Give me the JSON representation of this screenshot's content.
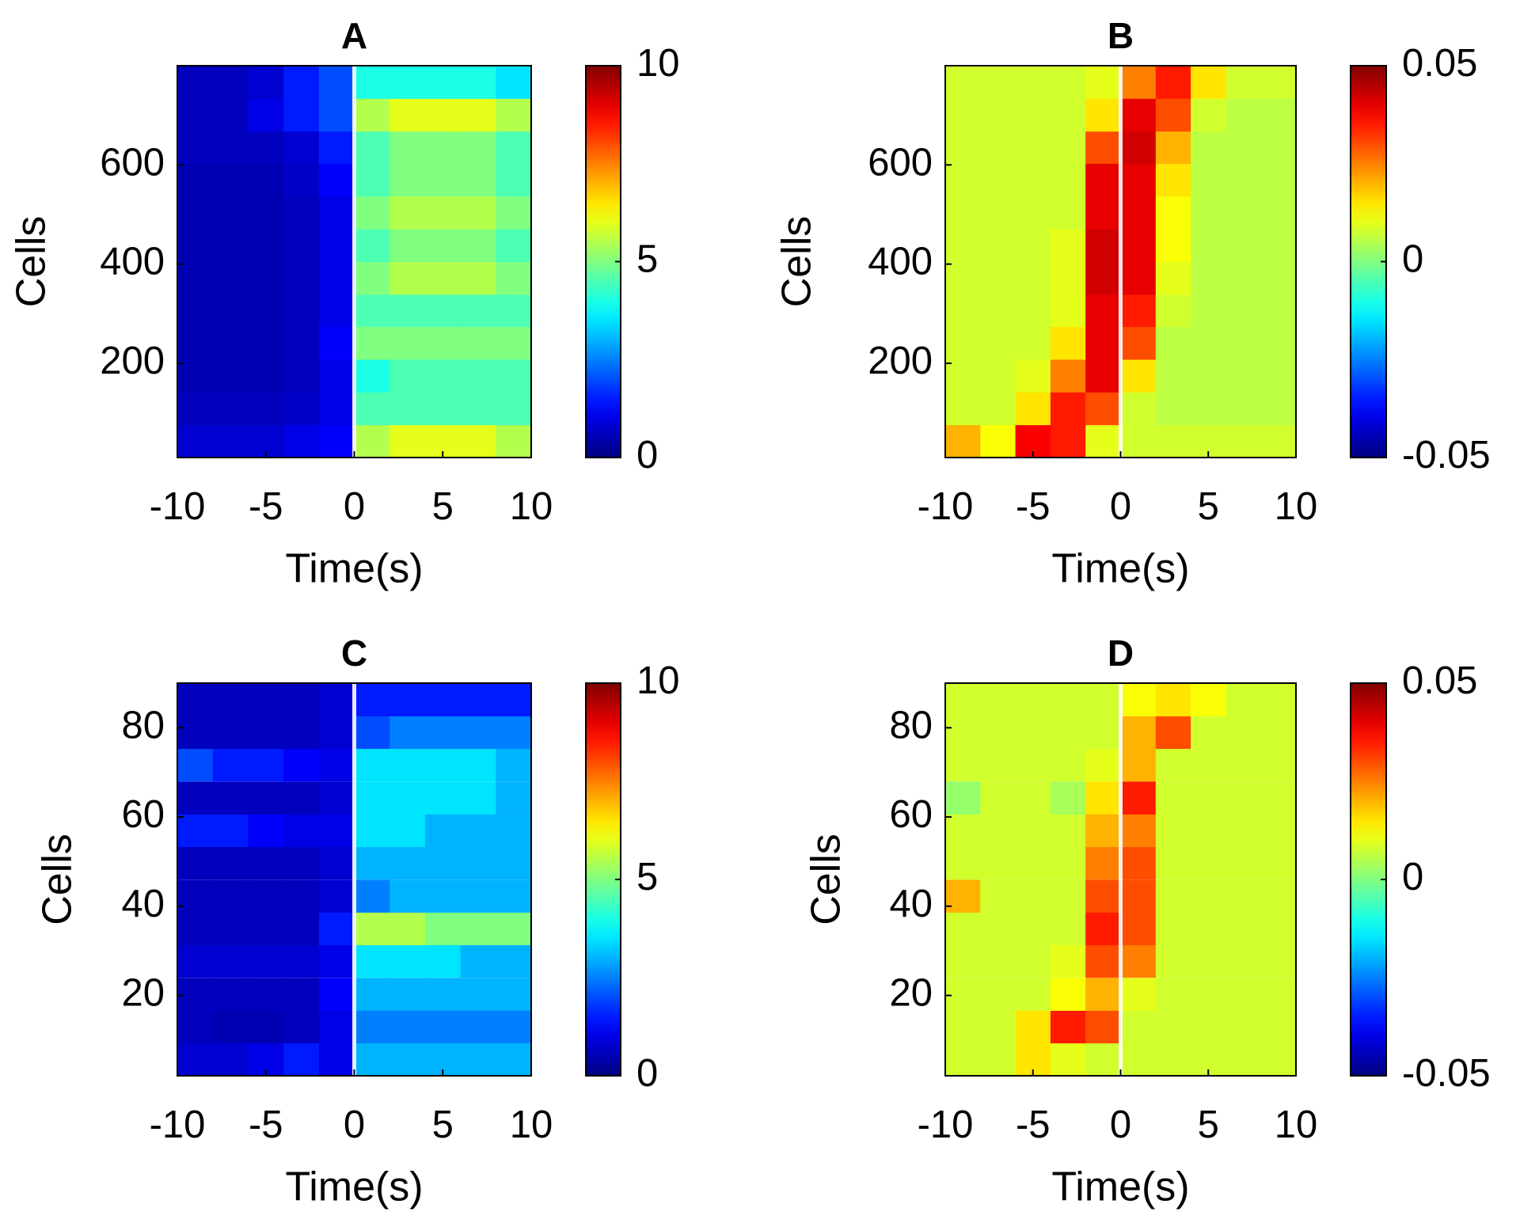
{
  "chart_data": [
    {
      "type": "heatmap",
      "title": "A",
      "xlabel": "Time(s)",
      "ylabel": "Cells",
      "colormap": "jet",
      "vline": 0,
      "xlim": [
        -10,
        10
      ],
      "xticks": [
        -10,
        -5,
        0,
        5,
        10
      ],
      "ylim": [
        10,
        800
      ],
      "yticks": [
        200,
        400,
        600
      ],
      "clim": [
        0,
        10
      ],
      "cticks": [
        0,
        5,
        10
      ],
      "x": [
        -9,
        -7,
        -5,
        -3,
        -1,
        1,
        3,
        5,
        7,
        9
      ],
      "y": [
        43,
        109,
        175,
        241,
        307,
        372,
        438,
        504,
        570,
        636,
        701,
        767
      ],
      "values": [
        [
          0.8,
          0.8,
          0.8,
          1.0,
          1.2,
          5.5,
          6,
          6,
          6,
          5.5
        ],
        [
          0.6,
          0.6,
          0.6,
          0.7,
          1.0,
          4.5,
          4.5,
          4.5,
          4.5,
          4.5
        ],
        [
          0.5,
          0.5,
          0.5,
          0.6,
          1.0,
          4,
          4.5,
          4.5,
          4.5,
          4.5
        ],
        [
          0.5,
          0.5,
          0.5,
          0.6,
          1.2,
          5,
          5,
          5,
          5,
          5
        ],
        [
          0.5,
          0.5,
          0.5,
          0.6,
          1.0,
          4.5,
          4.5,
          4.5,
          4.5,
          4.5
        ],
        [
          0.5,
          0.5,
          0.5,
          0.6,
          1.0,
          5,
          5.5,
          5.5,
          5.5,
          5
        ],
        [
          0.5,
          0.5,
          0.5,
          0.6,
          1.0,
          4.5,
          5,
          5,
          5,
          4.5
        ],
        [
          0.5,
          0.5,
          0.5,
          0.6,
          1.0,
          5,
          5.5,
          5.5,
          5.5,
          5
        ],
        [
          0.5,
          0.5,
          0.5,
          0.7,
          1.2,
          4.5,
          5,
          5,
          5,
          4.5
        ],
        [
          0.6,
          0.6,
          0.6,
          0.8,
          1.5,
          4.5,
          5,
          5,
          5,
          4.5
        ],
        [
          0.6,
          0.6,
          1.0,
          1.5,
          2,
          5.5,
          6,
          6,
          6,
          5.5
        ],
        [
          0.6,
          0.6,
          0.8,
          1.5,
          2,
          4,
          4,
          4,
          4,
          3.5
        ]
      ]
    },
    {
      "type": "heatmap",
      "title": "B",
      "xlabel": "Time(s)",
      "ylabel": "Cells",
      "colormap": "jet",
      "vline": 0,
      "xlim": [
        -10,
        10
      ],
      "xticks": [
        -10,
        -5,
        0,
        5,
        10
      ],
      "ylim": [
        10,
        800
      ],
      "yticks": [
        200,
        400,
        600
      ],
      "clim": [
        -0.05,
        0.05
      ],
      "cticks": [
        -0.05,
        0,
        0.05
      ],
      "x": [
        -9,
        -7,
        -5,
        -3,
        -1,
        1,
        3,
        5,
        7,
        9
      ],
      "y": [
        43,
        109,
        175,
        241,
        307,
        372,
        438,
        504,
        570,
        636,
        701,
        767
      ],
      "values": [
        [
          0.02,
          0.012,
          0.038,
          0.035,
          0.01,
          0.008,
          0.008,
          0.008,
          0.008,
          0.008
        ],
        [
          0.008,
          0.008,
          0.015,
          0.035,
          0.03,
          0.008,
          0.006,
          0.006,
          0.006,
          0.006
        ],
        [
          0.008,
          0.008,
          0.01,
          0.025,
          0.04,
          0.015,
          0.006,
          0.006,
          0.006,
          0.006
        ],
        [
          0.008,
          0.008,
          0.008,
          0.015,
          0.04,
          0.03,
          0.006,
          0.006,
          0.006,
          0.006
        ],
        [
          0.008,
          0.008,
          0.008,
          0.01,
          0.04,
          0.035,
          0.008,
          0.006,
          0.006,
          0.006
        ],
        [
          0.008,
          0.008,
          0.008,
          0.01,
          0.042,
          0.04,
          0.01,
          0.006,
          0.006,
          0.006
        ],
        [
          0.008,
          0.008,
          0.008,
          0.01,
          0.042,
          0.04,
          0.012,
          0.006,
          0.006,
          0.006
        ],
        [
          0.008,
          0.008,
          0.008,
          0.008,
          0.04,
          0.04,
          0.012,
          0.006,
          0.006,
          0.006
        ],
        [
          0.008,
          0.008,
          0.008,
          0.008,
          0.04,
          0.04,
          0.015,
          0.006,
          0.006,
          0.006
        ],
        [
          0.008,
          0.008,
          0.008,
          0.008,
          0.03,
          0.042,
          0.02,
          0.006,
          0.006,
          0.006
        ],
        [
          0.008,
          0.008,
          0.008,
          0.008,
          0.015,
          0.04,
          0.03,
          0.008,
          0.006,
          0.006
        ],
        [
          0.008,
          0.008,
          0.008,
          0.008,
          0.01,
          0.025,
          0.035,
          0.015,
          0.008,
          0.008
        ]
      ]
    },
    {
      "type": "heatmap",
      "title": "C",
      "xlabel": "Time(s)",
      "ylabel": "Cells",
      "colormap": "jet",
      "vline": 0,
      "xlim": [
        -10,
        10
      ],
      "xticks": [
        -10,
        -5,
        0,
        5,
        10
      ],
      "ylim": [
        2,
        90
      ],
      "yticks": [
        20,
        40,
        60,
        80
      ],
      "clim": [
        0,
        10
      ],
      "cticks": [
        0,
        5,
        10
      ],
      "x": [
        -9,
        -7,
        -5,
        -3,
        -1,
        1,
        3,
        5,
        7,
        9
      ],
      "y": [
        5.7,
        13,
        20.3,
        27.7,
        35,
        42.3,
        49.7,
        57,
        64.3,
        71.7,
        79,
        86.3
      ],
      "values": [
        [
          0.8,
          0.8,
          1,
          1.5,
          1,
          3,
          3,
          3,
          3,
          3
        ],
        [
          0.6,
          0.5,
          0.5,
          0.6,
          1,
          2.5,
          2.5,
          2.5,
          2.5,
          2.5
        ],
        [
          0.6,
          0.6,
          0.6,
          0.6,
          1.2,
          3,
          3,
          3,
          3,
          3
        ],
        [
          0.8,
          0.8,
          0.8,
          0.8,
          1,
          3.5,
          3.5,
          3.5,
          3,
          3
        ],
        [
          0.6,
          0.6,
          0.6,
          0.6,
          1.5,
          5.5,
          5.5,
          5,
          5,
          5
        ],
        [
          0.6,
          0.6,
          0.6,
          0.6,
          0.8,
          2.5,
          3,
          3,
          3,
          3
        ],
        [
          0.6,
          0.6,
          0.6,
          0.6,
          0.8,
          3,
          3,
          3,
          3,
          3
        ],
        [
          1.5,
          1.5,
          1.2,
          1,
          1,
          3.5,
          3.5,
          3,
          3,
          3
        ],
        [
          0.6,
          0.6,
          0.6,
          0.6,
          0.8,
          3.5,
          3.5,
          3.5,
          3.5,
          3
        ],
        [
          2,
          1.5,
          1.5,
          1.2,
          1,
          3.5,
          3.5,
          3.5,
          3.5,
          3
        ],
        [
          0.6,
          0.6,
          0.6,
          0.6,
          0.8,
          2,
          2.5,
          2.5,
          2.5,
          2.5
        ],
        [
          0.6,
          0.6,
          0.6,
          0.6,
          0.8,
          1.5,
          1.5,
          1.5,
          1.5,
          1.5
        ]
      ]
    },
    {
      "type": "heatmap",
      "title": "D",
      "xlabel": "Time(s)",
      "ylabel": "Cells",
      "colormap": "jet",
      "vline": 0,
      "xlim": [
        -10,
        10
      ],
      "xticks": [
        -10,
        -5,
        0,
        5,
        10
      ],
      "ylim": [
        2,
        90
      ],
      "yticks": [
        20,
        40,
        60,
        80
      ],
      "clim": [
        -0.05,
        0.05
      ],
      "cticks": [
        -0.05,
        0,
        0.05
      ],
      "x": [
        -9,
        -7,
        -5,
        -3,
        -1,
        1,
        3,
        5,
        7,
        9
      ],
      "y": [
        5.7,
        13,
        20.3,
        27.7,
        35,
        42.3,
        49.7,
        57,
        64.3,
        71.7,
        79,
        86.3
      ],
      "values": [
        [
          0.008,
          0.008,
          0.015,
          0.01,
          0.008,
          0.008,
          0.008,
          0.008,
          0.008,
          0.008
        ],
        [
          0.008,
          0.008,
          0.015,
          0.035,
          0.03,
          0.008,
          0.008,
          0.008,
          0.008,
          0.008
        ],
        [
          0.008,
          0.008,
          0.008,
          0.012,
          0.02,
          0.01,
          0.008,
          0.008,
          0.008,
          0.008
        ],
        [
          0.008,
          0.008,
          0.008,
          0.01,
          0.03,
          0.025,
          0.008,
          0.008,
          0.008,
          0.008
        ],
        [
          0.008,
          0.008,
          0.008,
          0.008,
          0.035,
          0.03,
          0.008,
          0.008,
          0.008,
          0.008
        ],
        [
          0.02,
          0.008,
          0.008,
          0.008,
          0.03,
          0.03,
          0.008,
          0.008,
          0.008,
          0.008
        ],
        [
          0.008,
          0.008,
          0.008,
          0.008,
          0.025,
          0.03,
          0.008,
          0.008,
          0.008,
          0.008
        ],
        [
          0.008,
          0.008,
          0.008,
          0.008,
          0.02,
          0.025,
          0.008,
          0.008,
          0.008,
          0.008
        ],
        [
          0.002,
          0.008,
          0.008,
          0.004,
          0.015,
          0.035,
          0.008,
          0.008,
          0.008,
          0.008
        ],
        [
          0.008,
          0.008,
          0.008,
          0.008,
          0.01,
          0.02,
          0.008,
          0.008,
          0.008,
          0.008
        ],
        [
          0.008,
          0.008,
          0.008,
          0.008,
          0.008,
          0.02,
          0.03,
          0.008,
          0.008,
          0.008
        ],
        [
          0.008,
          0.008,
          0.008,
          0.008,
          0.008,
          0.012,
          0.015,
          0.012,
          0.008,
          0.008
        ]
      ]
    }
  ]
}
